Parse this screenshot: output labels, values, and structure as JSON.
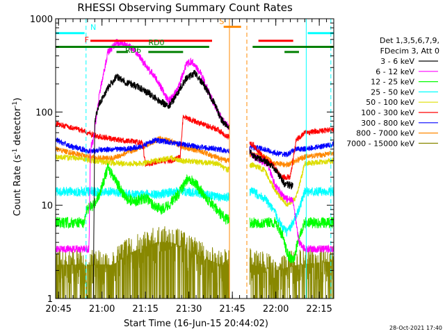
{
  "chart_data": {
    "type": "line",
    "title": "RHESSI Observing Summary Count Rates",
    "xlabel": "Start Time (16-Jun-15 20:44:02)",
    "ylabel_main": "Count Rate (s",
    "ylabel_sup1": "-1",
    "ylabel_mid": " detector",
    "ylabel_sup2": "-1",
    "ylabel_end": ")",
    "timestamp": "28-Oct-2021 17:40",
    "x_start_label": "20:44:02",
    "xlim_minutes": [
      0,
      96
    ],
    "ylim": [
      1,
      1000
    ],
    "yscale": "log",
    "x_ticks": [
      {
        "t": 1,
        "label": "20:45"
      },
      {
        "t": 16,
        "label": "21:00"
      },
      {
        "t": 31,
        "label": "21:15"
      },
      {
        "t": 46,
        "label": "21:30"
      },
      {
        "t": 61,
        "label": "21:45"
      },
      {
        "t": 76,
        "label": "22:00"
      },
      {
        "t": 91,
        "label": "22:15"
      }
    ],
    "y_ticks": [
      {
        "v": 1,
        "label": "1"
      },
      {
        "v": 10,
        "label": "10"
      },
      {
        "v": 100,
        "label": "100"
      },
      {
        "v": 1000,
        "label": "1000"
      }
    ],
    "legend": {
      "header1": "Det 1,3,5,6,7,9,",
      "header2": "FDecim 3, Att 0",
      "items": [
        {
          "label": "3 - 6 keV",
          "color": "#000000"
        },
        {
          "label": "6 - 12 keV",
          "color": "#ff00ff"
        },
        {
          "label": "12 - 25 keV",
          "color": "#00ff00"
        },
        {
          "label": "25 - 50 keV",
          "color": "#00ffff"
        },
        {
          "label": "50 - 100 keV",
          "color": "#dddd00"
        },
        {
          "label": "100 - 300 keV",
          "color": "#ff0000"
        },
        {
          "label": "300 - 800 keV",
          "color": "#0000ff"
        },
        {
          "label": "800 - 7000 keV",
          "color": "#ff8800"
        },
        {
          "label": "7000 - 15000 keV",
          "color": "#888800"
        }
      ]
    },
    "flag_labels": {
      "N": {
        "text": "N",
        "color": "#00ffff"
      },
      "F": {
        "text": "F",
        "color": "#ff0000"
      },
      "S": {
        "text": "S",
        "color": "#ff8800"
      },
      "RD0": {
        "text": "RD0",
        "color": "#008000"
      },
      "RD6": {
        "text": "RD6",
        "color": "#008000"
      }
    },
    "flag_bars": [
      {
        "name": "night",
        "color": "#00ffff",
        "level": 700,
        "segments": [
          [
            0,
            10
          ],
          [
            87,
            96
          ]
        ]
      },
      {
        "name": "flare",
        "color": "#ff0000",
        "level": 580,
        "segments": [
          [
            12,
            54
          ],
          [
            70,
            82
          ]
        ]
      },
      {
        "name": "saa",
        "color": "#ff8800",
        "level": 820,
        "segments": [
          [
            58,
            64
          ]
        ]
      },
      {
        "name": "rd0",
        "color": "#008000",
        "level": 500,
        "segments": [
          [
            0,
            53
          ],
          [
            68,
            96
          ]
        ]
      },
      {
        "name": "rd6",
        "color": "#008000",
        "level": 440,
        "segments": [
          [
            21,
            25
          ],
          [
            32,
            44
          ],
          [
            79,
            84
          ]
        ]
      }
    ],
    "vertical_markers": [
      {
        "t": 10.5,
        "color": "#00ffff",
        "dash": true
      },
      {
        "t": 60,
        "color": "#ff8800",
        "dash": false
      },
      {
        "t": 66,
        "color": "#ff8800",
        "dash": true
      },
      {
        "t": 86.5,
        "color": "#00ffff",
        "dash": false
      },
      {
        "t": 95,
        "color": "#00ffff",
        "dash": true
      }
    ],
    "gap": [
      60,
      67
    ],
    "series": [
      {
        "name": "3 - 6 keV",
        "color": "#000000",
        "noise": 0.04,
        "points": [
          [
            13,
            1
          ],
          [
            13.5,
            80
          ],
          [
            15,
            120
          ],
          [
            18,
            180
          ],
          [
            21,
            240
          ],
          [
            24,
            210
          ],
          [
            28,
            190
          ],
          [
            32,
            160
          ],
          [
            36,
            130
          ],
          [
            39,
            115
          ],
          [
            41,
            140
          ],
          [
            45,
            230
          ],
          [
            48,
            260
          ],
          [
            51,
            200
          ],
          [
            55,
            120
          ],
          [
            57,
            85
          ],
          [
            68,
            34
          ],
          [
            72,
            30
          ],
          [
            76,
            24
          ],
          [
            79,
            17
          ],
          [
            82,
            16
          ]
        ]
      },
      {
        "name": "6 - 12 keV",
        "color": "#ff00ff",
        "noise": 0.04,
        "points": [
          [
            0,
            3.4
          ],
          [
            11.5,
            3.4
          ],
          [
            12,
            40
          ],
          [
            13,
            50
          ],
          [
            15,
            150
          ],
          [
            18,
            430
          ],
          [
            21,
            560
          ],
          [
            24,
            520
          ],
          [
            27,
            470
          ],
          [
            31,
            320
          ],
          [
            35,
            220
          ],
          [
            39,
            130
          ],
          [
            42,
            170
          ],
          [
            45,
            320
          ],
          [
            47,
            350
          ],
          [
            50,
            260
          ],
          [
            53,
            160
          ],
          [
            56,
            100
          ],
          [
            58,
            80
          ],
          [
            68,
            34
          ],
          [
            71,
            30
          ],
          [
            73,
            28
          ],
          [
            76,
            16
          ],
          [
            79,
            12
          ],
          [
            82,
            11
          ],
          [
            84,
            4
          ],
          [
            86,
            3.4
          ],
          [
            96,
            3.4
          ]
        ]
      },
      {
        "name": "12 - 25 keV",
        "color": "#00ff00",
        "noise": 0.06,
        "points": [
          [
            0,
            6.5
          ],
          [
            10,
            6.5
          ],
          [
            10.5,
            9
          ],
          [
            13,
            10
          ],
          [
            15,
            13
          ],
          [
            18,
            25
          ],
          [
            20,
            20
          ],
          [
            24,
            12
          ],
          [
            27,
            11
          ],
          [
            31,
            12
          ],
          [
            34,
            10
          ],
          [
            36,
            9
          ],
          [
            39,
            10
          ],
          [
            43,
            14
          ],
          [
            46,
            20
          ],
          [
            49,
            16
          ],
          [
            53,
            11
          ],
          [
            57,
            8
          ],
          [
            59,
            7
          ],
          [
            68,
            6.5
          ],
          [
            76,
            6.5
          ],
          [
            78,
            5
          ],
          [
            80,
            3
          ],
          [
            82,
            2.5
          ],
          [
            84,
            4.5
          ],
          [
            86,
            6.5
          ],
          [
            96,
            6.5
          ]
        ]
      },
      {
        "name": "25 - 50 keV",
        "color": "#00ffff",
        "noise": 0.05,
        "points": [
          [
            0,
            14
          ],
          [
            20,
            14
          ],
          [
            26,
            13
          ],
          [
            32,
            13
          ],
          [
            36,
            13
          ],
          [
            40,
            14
          ],
          [
            46,
            14
          ],
          [
            52,
            13
          ],
          [
            58,
            12
          ],
          [
            68,
            14
          ],
          [
            72,
            12
          ],
          [
            76,
            8
          ],
          [
            78,
            6
          ],
          [
            80,
            5
          ],
          [
            84,
            9
          ],
          [
            86,
            14
          ],
          [
            96,
            14
          ]
        ]
      },
      {
        "name": "50 - 100 keV",
        "color": "#dddd00",
        "noise": 0.03,
        "points": [
          [
            0,
            33
          ],
          [
            8,
            32
          ],
          [
            16,
            29
          ],
          [
            24,
            28
          ],
          [
            30,
            28
          ],
          [
            34,
            30
          ],
          [
            40,
            32
          ],
          [
            44,
            30
          ],
          [
            50,
            29
          ],
          [
            56,
            28
          ],
          [
            59,
            24
          ],
          [
            68,
            27
          ],
          [
            72,
            24
          ],
          [
            76,
            14
          ],
          [
            80,
            10
          ],
          [
            83,
            12
          ],
          [
            86,
            28
          ],
          [
            96,
            30
          ]
        ]
      },
      {
        "name": "100 - 300 keV",
        "color": "#ff0000",
        "noise": 0.03,
        "points": [
          [
            0,
            75
          ],
          [
            8,
            65
          ],
          [
            14,
            55
          ],
          [
            22,
            50
          ],
          [
            27,
            48
          ],
          [
            30,
            47
          ],
          [
            31,
            27
          ],
          [
            36,
            30
          ],
          [
            40,
            30
          ],
          [
            43,
            33
          ],
          [
            44,
            90
          ],
          [
            50,
            75
          ],
          [
            56,
            65
          ],
          [
            59,
            55
          ],
          [
            68,
            45
          ],
          [
            72,
            32
          ],
          [
            75,
            27
          ],
          [
            78,
            20
          ],
          [
            81,
            20
          ],
          [
            83,
            50
          ],
          [
            86,
            60
          ],
          [
            96,
            65
          ]
        ]
      },
      {
        "name": "300 - 800 keV",
        "color": "#0000ff",
        "noise": 0.03,
        "points": [
          [
            0,
            50
          ],
          [
            6,
            42
          ],
          [
            12,
            38
          ],
          [
            18,
            40
          ],
          [
            24,
            40
          ],
          [
            30,
            43
          ],
          [
            34,
            50
          ],
          [
            38,
            48
          ],
          [
            44,
            45
          ],
          [
            50,
            42
          ],
          [
            56,
            40
          ],
          [
            59,
            38
          ],
          [
            68,
            42
          ],
          [
            72,
            40
          ],
          [
            76,
            36
          ],
          [
            80,
            35
          ],
          [
            83,
            40
          ],
          [
            86,
            40
          ],
          [
            96,
            45
          ]
        ]
      },
      {
        "name": "800 - 7000 keV",
        "color": "#ff8800",
        "noise": 0.03,
        "points": [
          [
            0,
            40
          ],
          [
            8,
            35
          ],
          [
            14,
            32
          ],
          [
            20,
            32
          ],
          [
            26,
            38
          ],
          [
            32,
            45
          ],
          [
            36,
            52
          ],
          [
            40,
            48
          ],
          [
            44,
            42
          ],
          [
            50,
            38
          ],
          [
            56,
            32
          ],
          [
            59,
            30
          ],
          [
            68,
            35
          ],
          [
            72,
            33
          ],
          [
            76,
            28
          ],
          [
            80,
            27
          ],
          [
            83,
            30
          ],
          [
            86,
            33
          ],
          [
            96,
            36
          ]
        ]
      },
      {
        "name": "7000 - 15000 keV",
        "color": "#888800",
        "noise": 0.35,
        "points": [
          [
            0,
            2.3
          ],
          [
            20,
            2.3
          ],
          [
            25,
            3
          ],
          [
            30,
            3.5
          ],
          [
            35,
            4
          ],
          [
            40,
            4
          ],
          [
            45,
            3.4
          ],
          [
            50,
            2.8
          ],
          [
            57,
            2.3
          ],
          [
            68,
            2.3
          ],
          [
            76,
            2
          ],
          [
            84,
            2.3
          ],
          [
            96,
            2.5
          ]
        ]
      }
    ]
  }
}
